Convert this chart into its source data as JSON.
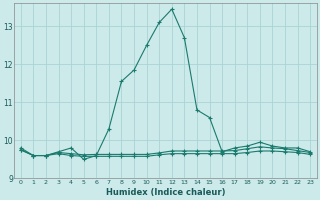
{
  "xlabel": "Humidex (Indice chaleur)",
  "x": [
    0,
    1,
    2,
    3,
    4,
    5,
    6,
    7,
    8,
    9,
    10,
    11,
    12,
    13,
    14,
    15,
    16,
    17,
    18,
    19,
    20,
    21,
    22,
    23
  ],
  "line1": [
    9.8,
    9.6,
    9.6,
    9.7,
    9.8,
    9.5,
    9.6,
    10.3,
    11.55,
    11.85,
    12.5,
    13.1,
    13.45,
    12.7,
    10.8,
    10.6,
    9.7,
    9.8,
    9.85,
    9.95,
    9.85,
    9.8,
    9.8,
    9.7
  ],
  "line2": [
    9.75,
    9.6,
    9.6,
    9.68,
    9.65,
    9.62,
    9.63,
    9.63,
    9.63,
    9.63,
    9.63,
    9.67,
    9.72,
    9.72,
    9.72,
    9.72,
    9.72,
    9.73,
    9.78,
    9.83,
    9.8,
    9.78,
    9.73,
    9.68
  ],
  "line3": [
    9.75,
    9.6,
    9.6,
    9.65,
    9.6,
    9.58,
    9.58,
    9.58,
    9.58,
    9.58,
    9.58,
    9.62,
    9.65,
    9.65,
    9.65,
    9.65,
    9.65,
    9.65,
    9.68,
    9.72,
    9.72,
    9.7,
    9.68,
    9.63
  ],
  "line_color": "#1a7a6e",
  "bg_color": "#cceaea",
  "grid_color": "#aad4d4",
  "ylim": [
    9.0,
    13.6
  ],
  "xlim": [
    -0.5,
    23.5
  ],
  "yticks": [
    9,
    10,
    11,
    12,
    13
  ],
  "xtick_labels": [
    "0",
    "1",
    "2",
    "3",
    "4",
    "5",
    "6",
    "7",
    "8",
    "9",
    "10",
    "11",
    "12",
    "13",
    "14",
    "15",
    "16",
    "17",
    "18",
    "19",
    "20",
    "21",
    "22",
    "23"
  ]
}
